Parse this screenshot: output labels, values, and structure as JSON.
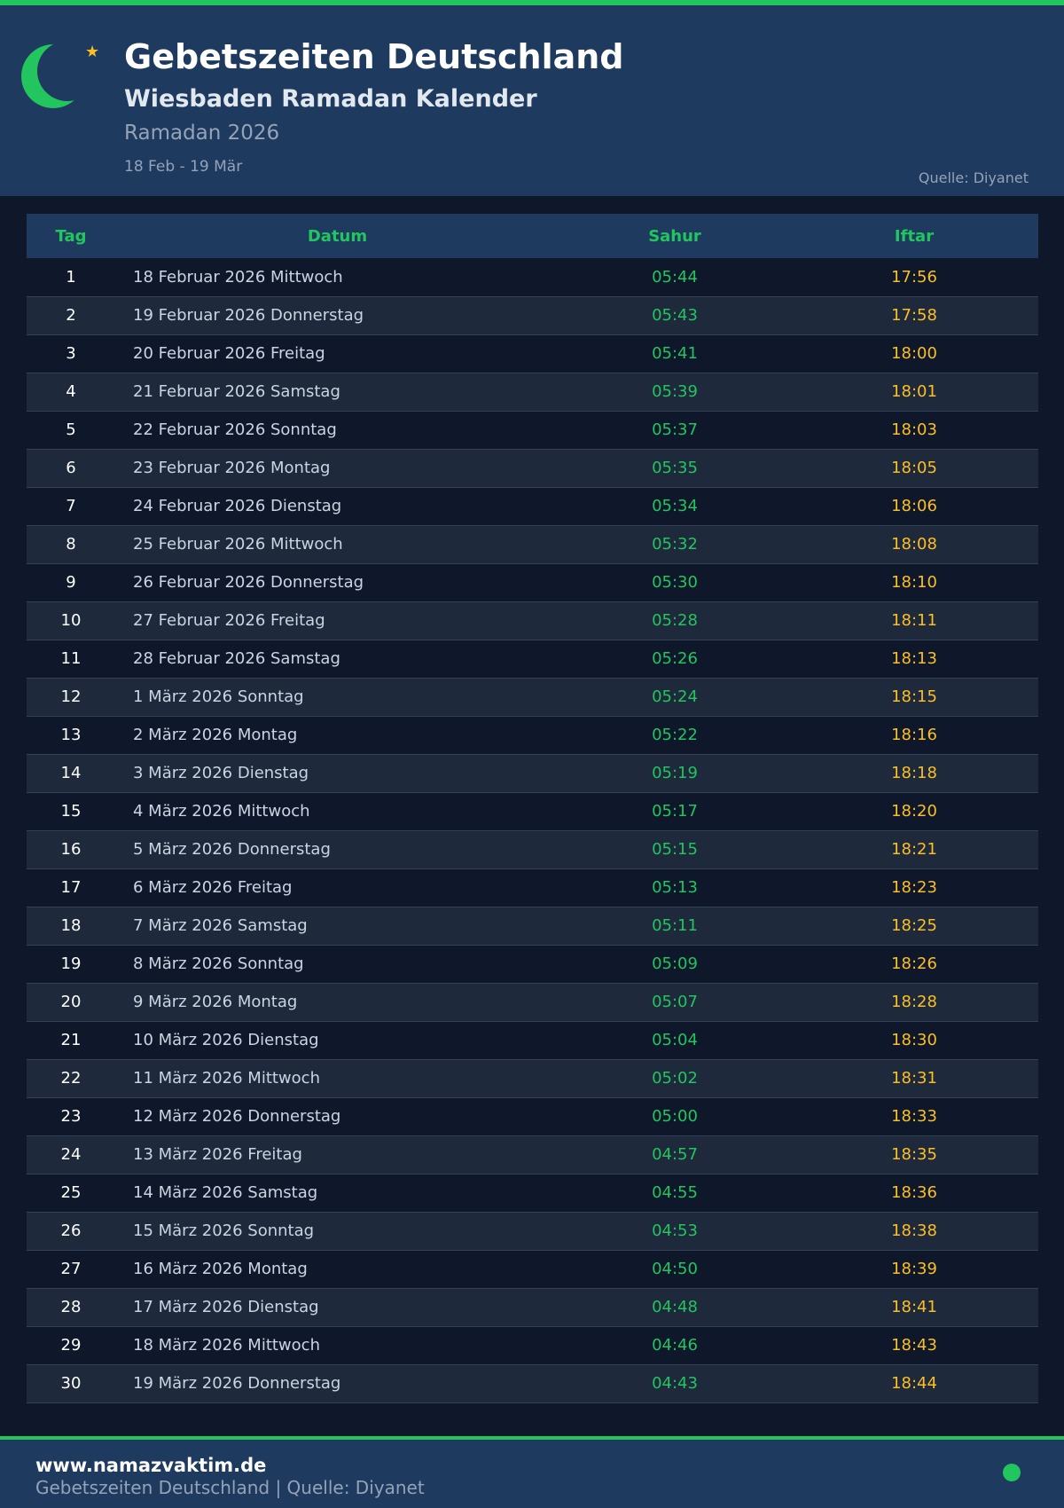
{
  "header": {
    "title": "Gebetszeiten Deutschland",
    "subtitle": "Wiesbaden Ramadan Kalender",
    "ramadan": "Ramadan 2026",
    "range": "18 Feb - 19 Mär",
    "source": "Quelle: Diyanet",
    "logo_icon": "crescent-star-icon"
  },
  "colors": {
    "accent": "#22c55e",
    "iftar": "#fbbf24",
    "header_bg": "#1e3a5f",
    "page_bg": "#0f172a"
  },
  "table": {
    "columns": [
      "Tag",
      "Datum",
      "Sahur",
      "Iftar"
    ],
    "rows": [
      [
        "1",
        "18 Februar 2026 Mittwoch",
        "05:44",
        "17:56"
      ],
      [
        "2",
        "19 Februar 2026 Donnerstag",
        "05:43",
        "17:58"
      ],
      [
        "3",
        "20 Februar 2026 Freitag",
        "05:41",
        "18:00"
      ],
      [
        "4",
        "21 Februar 2026 Samstag",
        "05:39",
        "18:01"
      ],
      [
        "5",
        "22 Februar 2026 Sonntag",
        "05:37",
        "18:03"
      ],
      [
        "6",
        "23 Februar 2026 Montag",
        "05:35",
        "18:05"
      ],
      [
        "7",
        "24 Februar 2026 Dienstag",
        "05:34",
        "18:06"
      ],
      [
        "8",
        "25 Februar 2026 Mittwoch",
        "05:32",
        "18:08"
      ],
      [
        "9",
        "26 Februar 2026 Donnerstag",
        "05:30",
        "18:10"
      ],
      [
        "10",
        "27 Februar 2026 Freitag",
        "05:28",
        "18:11"
      ],
      [
        "11",
        "28 Februar 2026 Samstag",
        "05:26",
        "18:13"
      ],
      [
        "12",
        "1 März 2026 Sonntag",
        "05:24",
        "18:15"
      ],
      [
        "13",
        "2 März 2026 Montag",
        "05:22",
        "18:16"
      ],
      [
        "14",
        "3 März 2026 Dienstag",
        "05:19",
        "18:18"
      ],
      [
        "15",
        "4 März 2026 Mittwoch",
        "05:17",
        "18:20"
      ],
      [
        "16",
        "5 März 2026 Donnerstag",
        "05:15",
        "18:21"
      ],
      [
        "17",
        "6 März 2026 Freitag",
        "05:13",
        "18:23"
      ],
      [
        "18",
        "7 März 2026 Samstag",
        "05:11",
        "18:25"
      ],
      [
        "19",
        "8 März 2026 Sonntag",
        "05:09",
        "18:26"
      ],
      [
        "20",
        "9 März 2026 Montag",
        "05:07",
        "18:28"
      ],
      [
        "21",
        "10 März 2026 Dienstag",
        "05:04",
        "18:30"
      ],
      [
        "22",
        "11 März 2026 Mittwoch",
        "05:02",
        "18:31"
      ],
      [
        "23",
        "12 März 2026 Donnerstag",
        "05:00",
        "18:33"
      ],
      [
        "24",
        "13 März 2026 Freitag",
        "04:57",
        "18:35"
      ],
      [
        "25",
        "14 März 2026 Samstag",
        "04:55",
        "18:36"
      ],
      [
        "26",
        "15 März 2026 Sonntag",
        "04:53",
        "18:38"
      ],
      [
        "27",
        "16 März 2026 Montag",
        "04:50",
        "18:39"
      ],
      [
        "28",
        "17 März 2026 Dienstag",
        "04:48",
        "18:41"
      ],
      [
        "29",
        "18 März 2026 Mittwoch",
        "04:46",
        "18:43"
      ],
      [
        "30",
        "19 März 2026 Donnerstag",
        "04:43",
        "18:44"
      ]
    ]
  },
  "footer": {
    "site": "www.namazvaktim.de",
    "text": "Gebetszeiten Deutschland | Quelle: Diyanet"
  }
}
